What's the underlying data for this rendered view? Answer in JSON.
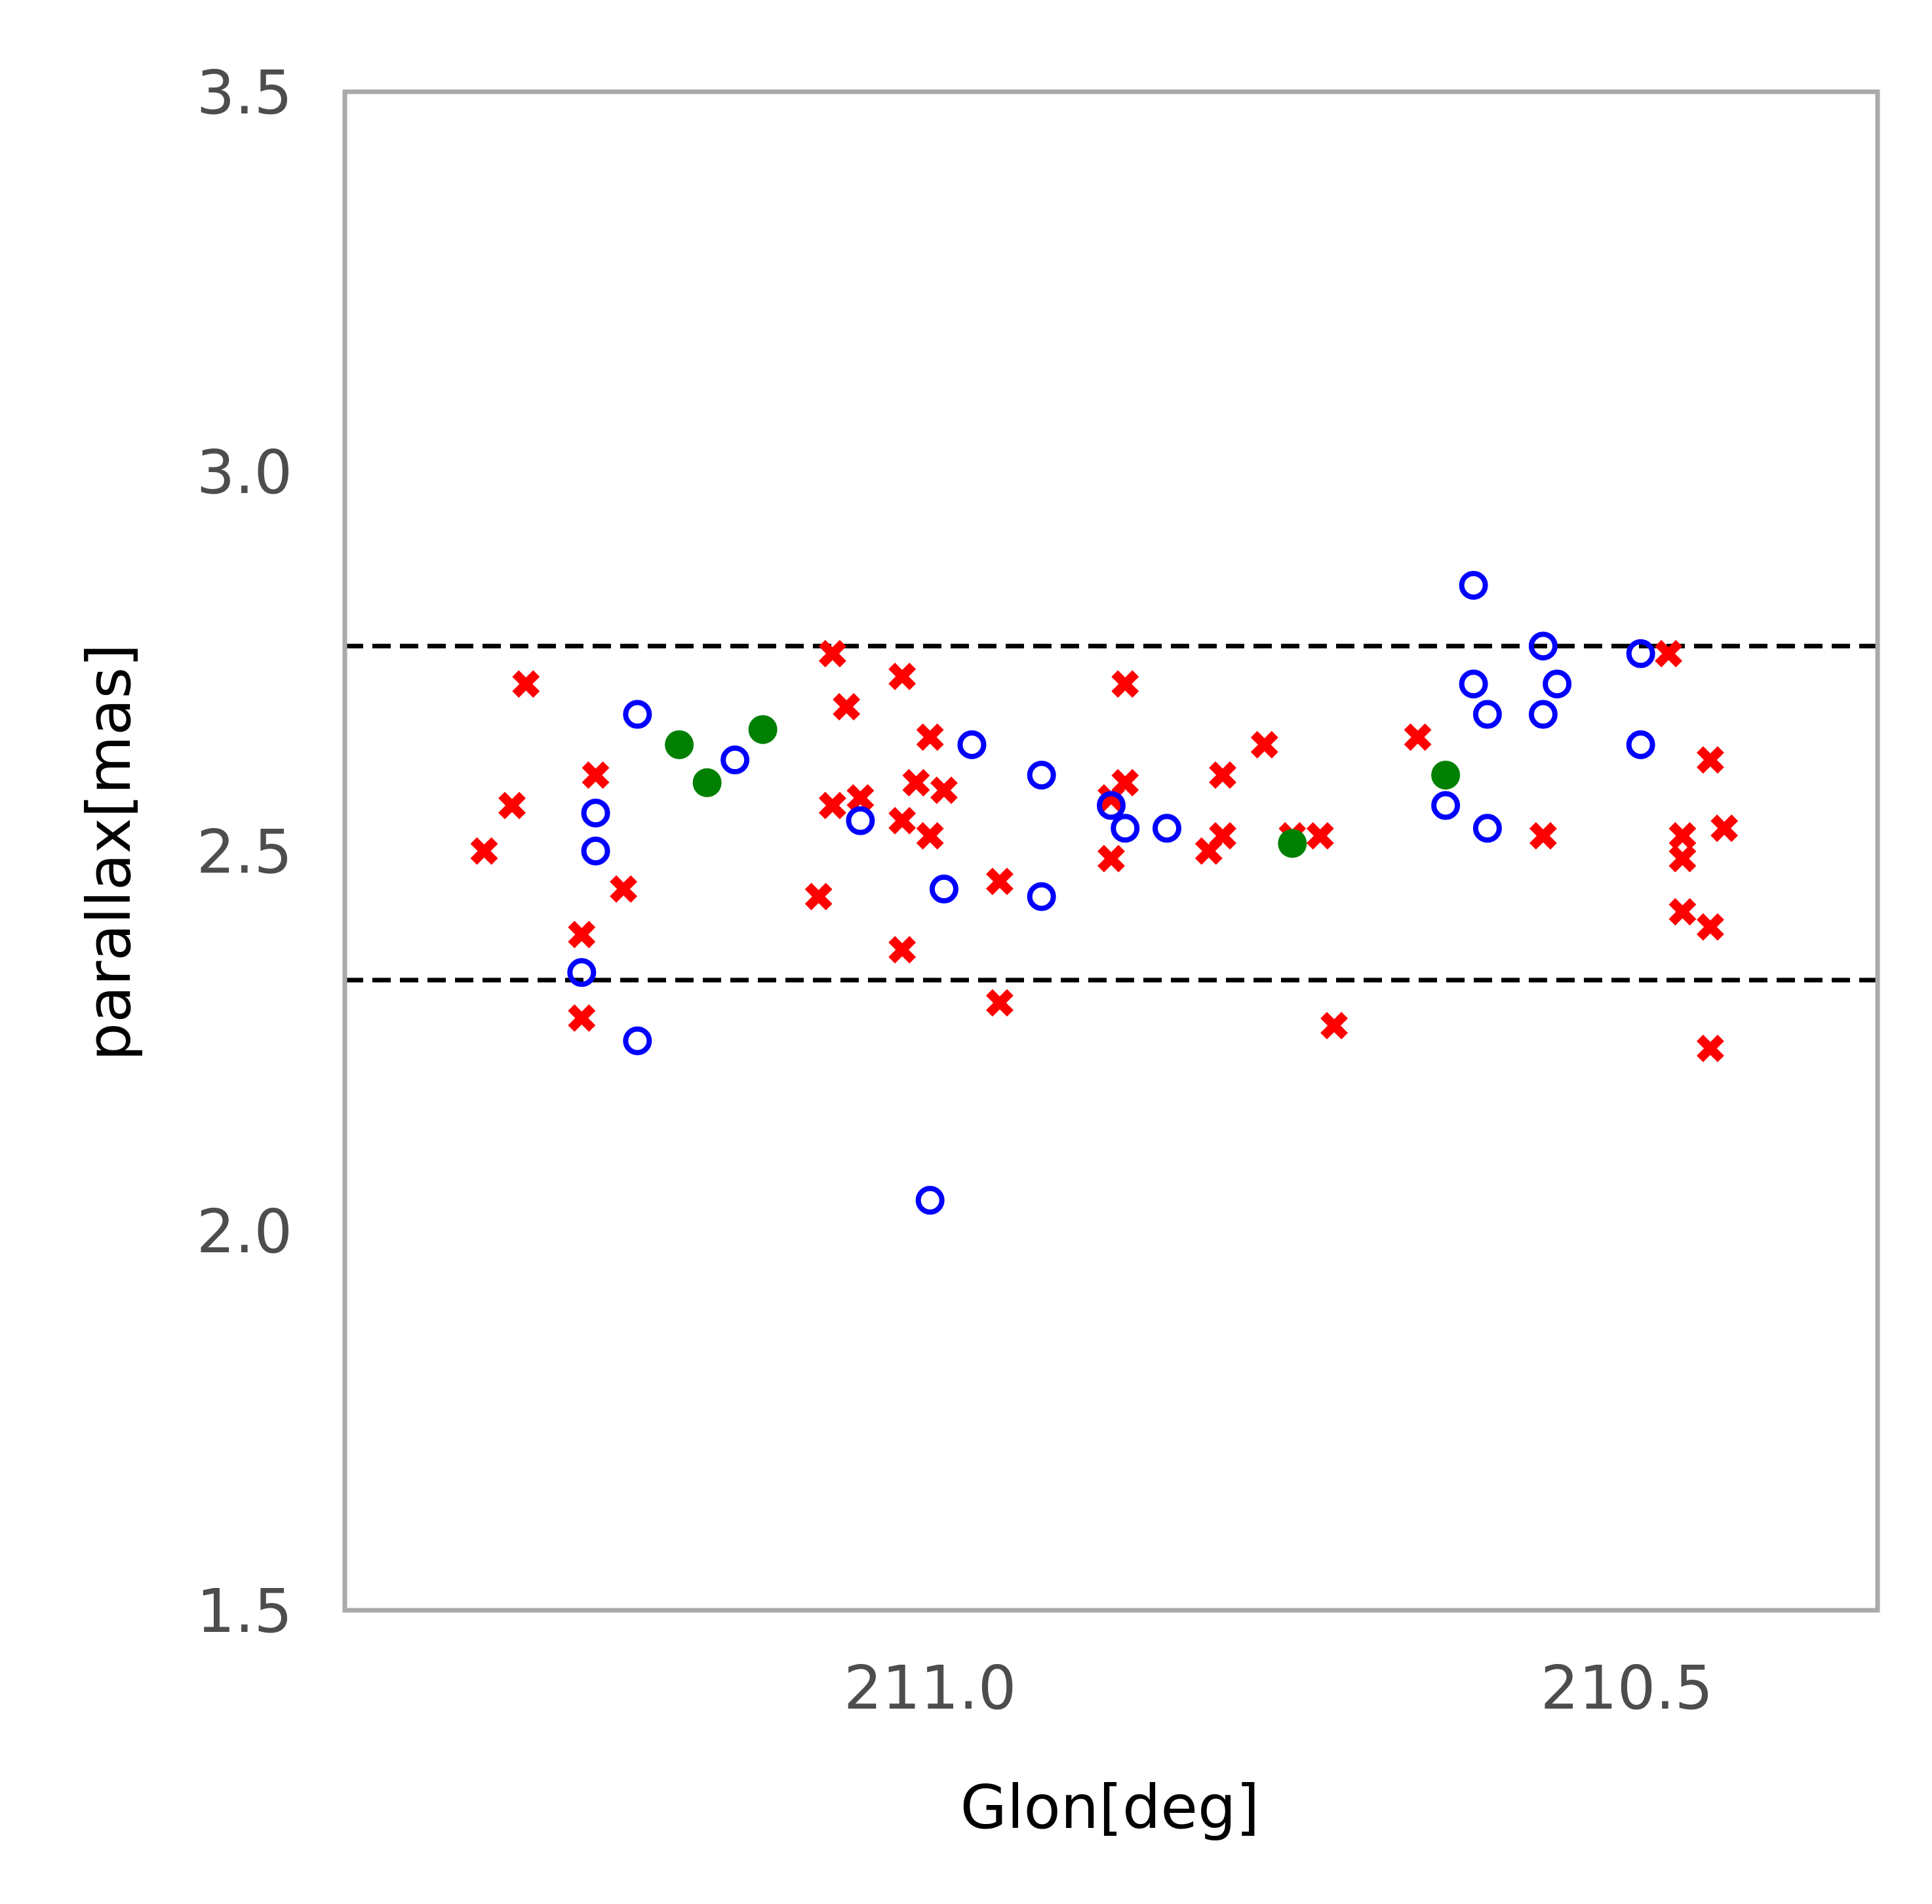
{
  "chart_data": {
    "type": "scatter",
    "title": "",
    "xlabel": "Glon[deg]",
    "ylabel": "parallax[mas]",
    "xlim": [
      211.42,
      210.32
    ],
    "ylim": [
      1.5,
      3.5
    ],
    "x_inverted": true,
    "grid": false,
    "x_ticks": [
      {
        "value": 211.0,
        "label": "211.0"
      },
      {
        "value": 210.5,
        "label": "210.5"
      }
    ],
    "y_ticks": [
      {
        "value": 1.5,
        "label": "1.5"
      },
      {
        "value": 2.0,
        "label": "2.0"
      },
      {
        "value": 2.5,
        "label": "2.5"
      },
      {
        "value": 3.0,
        "label": "3.0"
      },
      {
        "value": 3.5,
        "label": "3.5"
      }
    ],
    "reference_lines": [
      {
        "axis": "y",
        "value": 2.77,
        "style": "dashed",
        "color": "#000000"
      },
      {
        "axis": "y",
        "value": 2.33,
        "style": "dashed",
        "color": "#000000"
      }
    ],
    "series": [
      {
        "marker": "x",
        "color": "#ff0000",
        "points": [
          {
            "x": 211.32,
            "y": 2.5
          },
          {
            "x": 211.3,
            "y": 2.56
          },
          {
            "x": 211.29,
            "y": 2.72
          },
          {
            "x": 211.25,
            "y": 2.39
          },
          {
            "x": 211.25,
            "y": 2.28
          },
          {
            "x": 211.24,
            "y": 2.6
          },
          {
            "x": 211.22,
            "y": 2.45
          },
          {
            "x": 211.08,
            "y": 2.44
          },
          {
            "x": 211.07,
            "y": 2.76
          },
          {
            "x": 211.07,
            "y": 2.56
          },
          {
            "x": 211.06,
            "y": 2.69
          },
          {
            "x": 211.05,
            "y": 2.57
          },
          {
            "x": 211.02,
            "y": 2.73
          },
          {
            "x": 211.02,
            "y": 2.54
          },
          {
            "x": 211.02,
            "y": 2.37
          },
          {
            "x": 211.01,
            "y": 2.59
          },
          {
            "x": 211.0,
            "y": 2.52
          },
          {
            "x": 211.0,
            "y": 2.65
          },
          {
            "x": 210.99,
            "y": 2.58
          },
          {
            "x": 210.95,
            "y": 2.46
          },
          {
            "x": 210.95,
            "y": 2.3
          },
          {
            "x": 210.87,
            "y": 2.57
          },
          {
            "x": 210.87,
            "y": 2.49
          },
          {
            "x": 210.86,
            "y": 2.72
          },
          {
            "x": 210.86,
            "y": 2.59
          },
          {
            "x": 210.8,
            "y": 2.5
          },
          {
            "x": 210.79,
            "y": 2.52
          },
          {
            "x": 210.79,
            "y": 2.6
          },
          {
            "x": 210.76,
            "y": 2.64
          },
          {
            "x": 210.74,
            "y": 2.52
          },
          {
            "x": 210.72,
            "y": 2.52
          },
          {
            "x": 210.71,
            "y": 2.27
          },
          {
            "x": 210.65,
            "y": 2.65
          },
          {
            "x": 210.56,
            "y": 2.52
          },
          {
            "x": 210.47,
            "y": 2.76
          },
          {
            "x": 210.46,
            "y": 2.52
          },
          {
            "x": 210.46,
            "y": 2.49
          },
          {
            "x": 210.46,
            "y": 2.42
          },
          {
            "x": 210.44,
            "y": 2.4
          },
          {
            "x": 210.44,
            "y": 2.62
          },
          {
            "x": 210.43,
            "y": 2.53
          },
          {
            "x": 210.44,
            "y": 2.24
          }
        ]
      },
      {
        "marker": "open-circle",
        "color": "#0000ff",
        "points": [
          {
            "x": 211.21,
            "y": 2.68
          },
          {
            "x": 211.24,
            "y": 2.55
          },
          {
            "x": 211.24,
            "y": 2.5
          },
          {
            "x": 211.25,
            "y": 2.34
          },
          {
            "x": 211.21,
            "y": 2.25
          },
          {
            "x": 211.14,
            "y": 2.62
          },
          {
            "x": 211.05,
            "y": 2.54
          },
          {
            "x": 210.97,
            "y": 2.64
          },
          {
            "x": 210.99,
            "y": 2.45
          },
          {
            "x": 211.0,
            "y": 2.04
          },
          {
            "x": 210.92,
            "y": 2.6
          },
          {
            "x": 210.92,
            "y": 2.44
          },
          {
            "x": 210.87,
            "y": 2.56
          },
          {
            "x": 210.86,
            "y": 2.53
          },
          {
            "x": 210.83,
            "y": 2.53
          },
          {
            "x": 210.61,
            "y": 2.85
          },
          {
            "x": 210.61,
            "y": 2.72
          },
          {
            "x": 210.6,
            "y": 2.68
          },
          {
            "x": 210.63,
            "y": 2.56
          },
          {
            "x": 210.6,
            "y": 2.53
          },
          {
            "x": 210.56,
            "y": 2.77
          },
          {
            "x": 210.55,
            "y": 2.72
          },
          {
            "x": 210.56,
            "y": 2.68
          },
          {
            "x": 210.49,
            "y": 2.76
          },
          {
            "x": 210.49,
            "y": 2.64
          }
        ]
      },
      {
        "marker": "filled-circle",
        "color": "#008000",
        "points": [
          {
            "x": 211.18,
            "y": 2.64
          },
          {
            "x": 211.16,
            "y": 2.59
          },
          {
            "x": 211.12,
            "y": 2.66
          },
          {
            "x": 210.74,
            "y": 2.51
          },
          {
            "x": 210.63,
            "y": 2.6
          }
        ]
      }
    ]
  }
}
